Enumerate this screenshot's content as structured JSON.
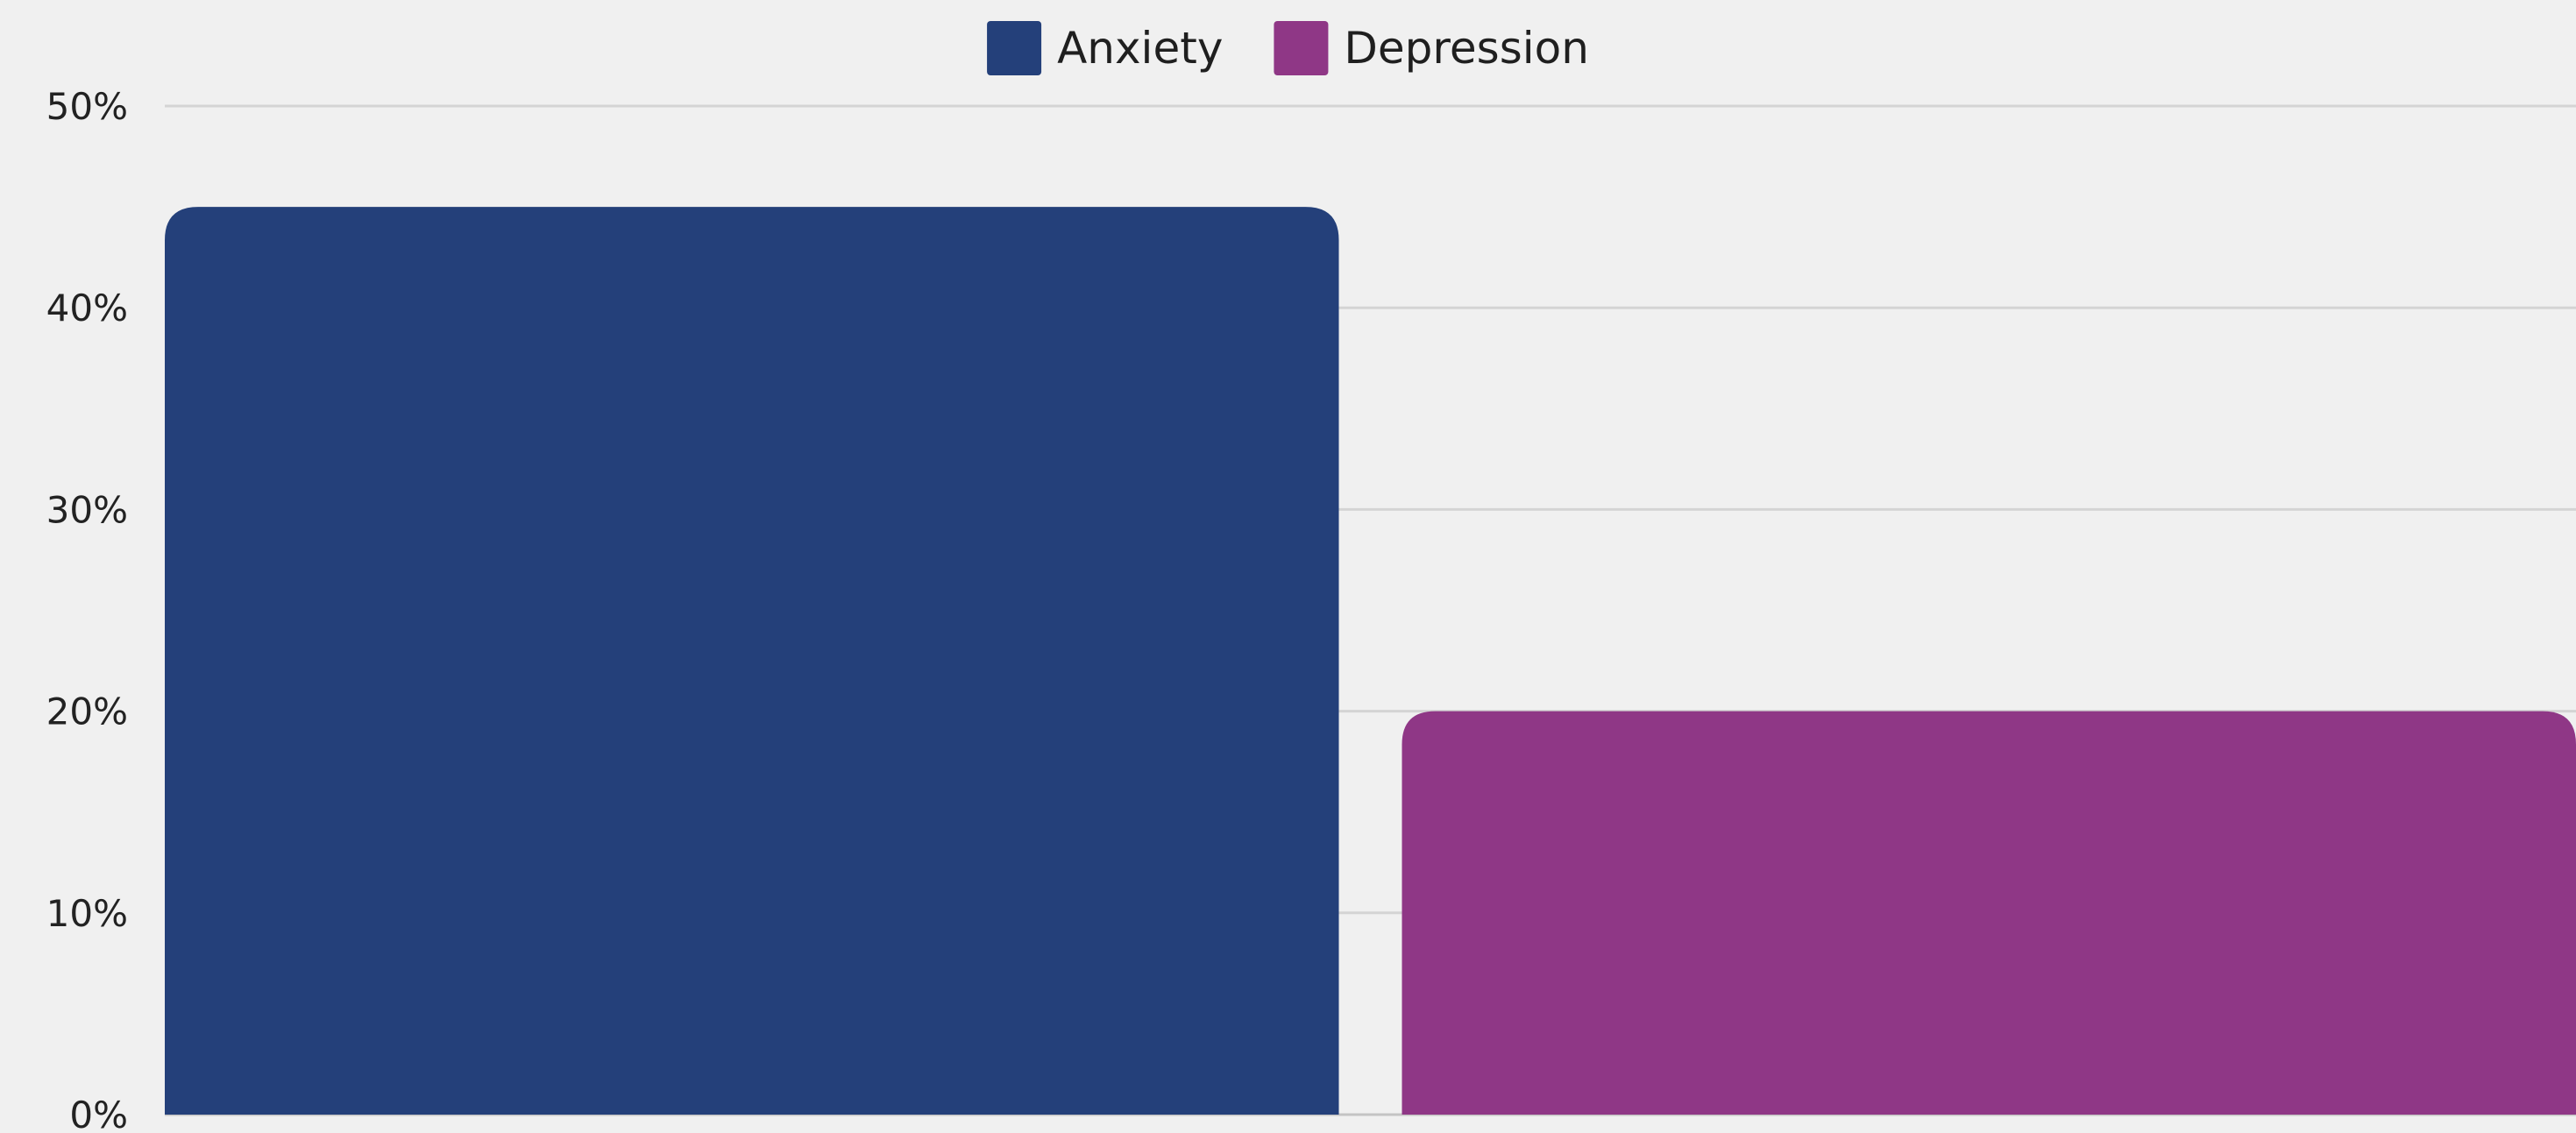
{
  "chart_data": {
    "type": "bar",
    "title": "",
    "xlabel": "",
    "ylabel": "",
    "ylim": [
      0,
      50
    ],
    "y_ticks": [
      "0%",
      "10%",
      "20%",
      "30%",
      "40%",
      "50%"
    ],
    "y_tick_values": [
      0,
      10,
      20,
      30,
      40,
      50
    ],
    "grid": true,
    "legend_position": "top-center",
    "series": [
      {
        "name": "Anxiety",
        "values": [
          45
        ],
        "color": "#24407a"
      },
      {
        "name": "Depression",
        "values": [
          20
        ],
        "color": "#8f3786"
      }
    ],
    "categories": [
      ""
    ]
  }
}
